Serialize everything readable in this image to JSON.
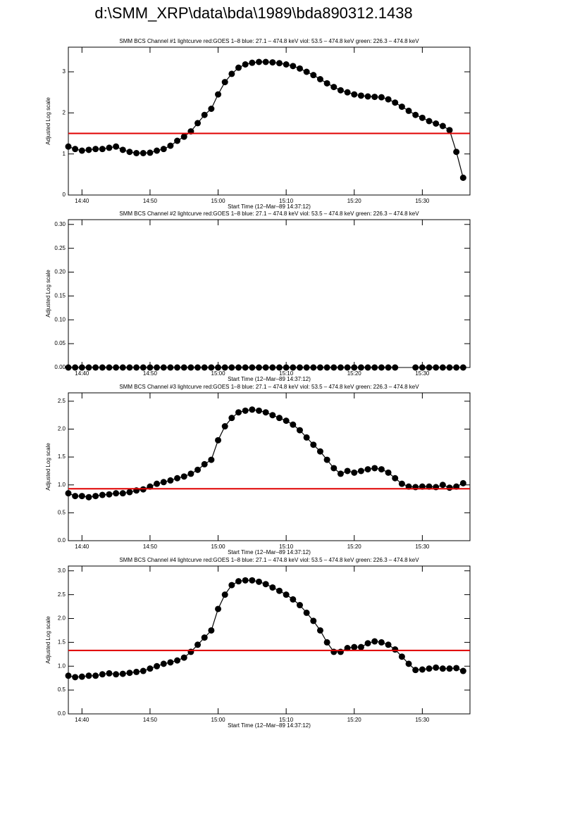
{
  "title": "d:\\SMM_XRP\\data\\bda\\1989\\bda890312.1438",
  "chart_data": [
    {
      "type": "line",
      "title": "SMM BCS Channel #1 lightcurve  red:GOES 1–8  blue: 27.1 – 474.8 keV  viol: 53.5 – 474.8 keV  green: 226.3 – 474.8 keV",
      "x_label": "Start Time (12–Mar–89 14:37:12)",
      "y_label": "Adjusted Log scale",
      "color": "#000000",
      "threshold": 1.5,
      "threshold_color": "#e00000",
      "xlim": [
        "14:38",
        "15:37"
      ],
      "xticks": [
        "14:40",
        "14:50",
        "15:00",
        "15:10",
        "15:20",
        "15:30"
      ],
      "ylim": [
        0,
        3.6
      ],
      "yticks": [
        0,
        1,
        2,
        3
      ],
      "x": [
        "14:38",
        "14:39",
        "14:40",
        "14:41",
        "14:42",
        "14:43",
        "14:44",
        "14:45",
        "14:46",
        "14:47",
        "14:48",
        "14:49",
        "14:50",
        "14:51",
        "14:52",
        "14:53",
        "14:54",
        "14:55",
        "14:56",
        "14:57",
        "14:58",
        "14:59",
        "15:00",
        "15:01",
        "15:02",
        "15:03",
        "15:04",
        "15:05",
        "15:06",
        "15:07",
        "15:08",
        "15:09",
        "15:10",
        "15:11",
        "15:12",
        "15:13",
        "15:14",
        "15:15",
        "15:16",
        "15:17",
        "15:18",
        "15:19",
        "15:20",
        "15:21",
        "15:22",
        "15:23",
        "15:24",
        "15:25",
        "15:26",
        "15:27",
        "15:28",
        "15:29",
        "15:30",
        "15:31",
        "15:32",
        "15:33",
        "15:34",
        "15:35",
        "15:36"
      ],
      "values": [
        1.18,
        1.12,
        1.08,
        1.1,
        1.12,
        1.12,
        1.15,
        1.18,
        1.1,
        1.05,
        1.02,
        1.02,
        1.03,
        1.08,
        1.12,
        1.2,
        1.32,
        1.42,
        1.55,
        1.75,
        1.95,
        2.1,
        2.45,
        2.75,
        2.95,
        3.1,
        3.18,
        3.22,
        3.24,
        3.24,
        3.23,
        3.21,
        3.18,
        3.14,
        3.08,
        3.0,
        2.92,
        2.82,
        2.72,
        2.63,
        2.55,
        2.5,
        2.45,
        2.42,
        2.4,
        2.39,
        2.38,
        2.33,
        2.25,
        2.15,
        2.05,
        1.95,
        1.88,
        1.8,
        1.74,
        1.68,
        1.58,
        1.05,
        0.42
      ]
    },
    {
      "type": "line",
      "title": "SMM BCS Channel #2 lightcurve  red:GOES 1–8  blue: 27.1 – 474.8 keV  viol: 53.5 – 474.8 keV  green: 226.3 – 474.8 keV",
      "x_label": "Start Time (12–Mar–89 14:37:12)",
      "y_label": "Adjusted Log scale",
      "color": "#000000",
      "xlim": [
        "14:38",
        "15:37"
      ],
      "xticks": [
        "14:40",
        "14:50",
        "15:00",
        "15:10",
        "15:20",
        "15:30"
      ],
      "ylim": [
        0,
        0.31
      ],
      "yticks": [
        {
          "value": 0,
          "label": "0.00"
        },
        {
          "value": 0.05,
          "label": "0.05"
        },
        {
          "value": 0.1,
          "label": "0.10"
        },
        {
          "value": 0.15,
          "label": "0.15"
        },
        {
          "value": 0.2,
          "label": "0.20"
        },
        {
          "value": 0.25,
          "label": "0.25"
        },
        {
          "value": 0.3,
          "label": "0.30"
        }
      ],
      "x": [
        "14:38",
        "14:39",
        "14:40",
        "14:41",
        "14:42",
        "14:43",
        "14:44",
        "14:45",
        "14:46",
        "14:47",
        "14:48",
        "14:49",
        "14:50",
        "14:51",
        "14:52",
        "14:53",
        "14:54",
        "14:55",
        "14:56",
        "14:57",
        "14:58",
        "14:59",
        "15:00",
        "15:01",
        "15:02",
        "15:03",
        "15:04",
        "15:05",
        "15:06",
        "15:07",
        "15:08",
        "15:09",
        "15:10",
        "15:11",
        "15:12",
        "15:13",
        "15:14",
        "15:15",
        "15:16",
        "15:17",
        "15:18",
        "15:19",
        "15:20",
        "15:21",
        "15:22",
        "15:23",
        "15:24",
        "15:25",
        "15:26",
        "15:27",
        "15:28",
        "15:29",
        "15:30",
        "15:31",
        "15:32",
        "15:33",
        "15:34",
        "15:35",
        "15:36"
      ],
      "values": [
        0,
        0,
        0,
        0,
        0,
        0,
        0,
        0,
        0,
        0,
        0,
        0,
        0,
        0,
        0,
        0,
        0,
        0,
        0,
        0,
        0,
        0,
        0,
        0,
        0,
        0,
        0,
        0,
        0,
        0,
        0,
        0,
        0,
        0,
        0,
        0,
        0,
        0,
        0,
        0,
        0,
        0,
        0,
        0,
        0,
        0,
        0,
        0,
        0,
        null,
        null,
        0,
        0,
        0,
        0,
        0,
        0,
        0,
        0
      ]
    },
    {
      "type": "line",
      "title": "SMM BCS Channel #3 lightcurve  red:GOES 1–8  blue: 27.1 – 474.8 keV  viol: 53.5 – 474.8 keV  green: 226.3 – 474.8 keV",
      "x_label": "Start Time (12–Mar–89 14:37:12)",
      "y_label": "Adjusted Log scale",
      "color": "#000000",
      "threshold": 0.93,
      "threshold_color": "#e00000",
      "xlim": [
        "14:38",
        "15:37"
      ],
      "xticks": [
        "14:40",
        "14:50",
        "15:00",
        "15:10",
        "15:20",
        "15:30"
      ],
      "ylim": [
        0,
        2.65
      ],
      "yticks": [
        {
          "value": 0,
          "label": "0.0"
        },
        {
          "value": 0.5,
          "label": "0.5"
        },
        {
          "value": 1,
          "label": "1.0"
        },
        {
          "value": 1.5,
          "label": "1.5"
        },
        {
          "value": 2,
          "label": "2.0"
        },
        {
          "value": 2.5,
          "label": "2.5"
        }
      ],
      "x": [
        "14:38",
        "14:39",
        "14:40",
        "14:41",
        "14:42",
        "14:43",
        "14:44",
        "14:45",
        "14:46",
        "14:47",
        "14:48",
        "14:49",
        "14:50",
        "14:51",
        "14:52",
        "14:53",
        "14:54",
        "14:55",
        "14:56",
        "14:57",
        "14:58",
        "14:59",
        "15:00",
        "15:01",
        "15:02",
        "15:03",
        "15:04",
        "15:05",
        "15:06",
        "15:07",
        "15:08",
        "15:09",
        "15:10",
        "15:11",
        "15:12",
        "15:13",
        "15:14",
        "15:15",
        "15:16",
        "15:17",
        "15:18",
        "15:19",
        "15:20",
        "15:21",
        "15:22",
        "15:23",
        "15:24",
        "15:25",
        "15:26",
        "15:27",
        "15:28",
        "15:29",
        "15:30",
        "15:31",
        "15:32",
        "15:33",
        "15:34",
        "15:35",
        "15:36"
      ],
      "values": [
        0.85,
        0.8,
        0.8,
        0.78,
        0.8,
        0.82,
        0.83,
        0.85,
        0.85,
        0.87,
        0.9,
        0.92,
        0.97,
        1.02,
        1.05,
        1.08,
        1.12,
        1.15,
        1.2,
        1.27,
        1.37,
        1.45,
        1.8,
        2.05,
        2.2,
        2.3,
        2.33,
        2.35,
        2.33,
        2.3,
        2.25,
        2.2,
        2.15,
        2.08,
        1.98,
        1.85,
        1.72,
        1.6,
        1.45,
        1.3,
        1.2,
        1.25,
        1.22,
        1.25,
        1.28,
        1.3,
        1.28,
        1.22,
        1.12,
        1.02,
        0.97,
        0.96,
        0.97,
        0.97,
        0.96,
        1.0,
        0.95,
        0.97,
        1.03
      ]
    },
    {
      "type": "line",
      "title": "SMM BCS Channel #4 lightcurve  red:GOES 1–8  blue: 27.1 – 474.8 keV  viol: 53.5 – 474.8 keV  green: 226.3 – 474.8 keV",
      "x_label": "Start Time (12–Mar–89 14:37:12)",
      "y_label": "Adjusted Log scale",
      "color": "#000000",
      "threshold": 1.33,
      "threshold_color": "#e00000",
      "xlim": [
        "14:38",
        "15:37"
      ],
      "xticks": [
        "14:40",
        "14:50",
        "15:00",
        "15:10",
        "15:20",
        "15:30"
      ],
      "ylim": [
        0,
        3.1
      ],
      "yticks": [
        {
          "value": 0,
          "label": "0.0"
        },
        {
          "value": 0.5,
          "label": "0.5"
        },
        {
          "value": 1,
          "label": "1.0"
        },
        {
          "value": 1.5,
          "label": "1.5"
        },
        {
          "value": 2,
          "label": "2.0"
        },
        {
          "value": 2.5,
          "label": "2.5"
        },
        {
          "value": 3,
          "label": "3.0"
        }
      ],
      "x": [
        "14:38",
        "14:39",
        "14:40",
        "14:41",
        "14:42",
        "14:43",
        "14:44",
        "14:45",
        "14:46",
        "14:47",
        "14:48",
        "14:49",
        "14:50",
        "14:51",
        "14:52",
        "14:53",
        "14:54",
        "14:55",
        "14:56",
        "14:57",
        "14:58",
        "14:59",
        "15:00",
        "15:01",
        "15:02",
        "15:03",
        "15:04",
        "15:05",
        "15:06",
        "15:07",
        "15:08",
        "15:09",
        "15:10",
        "15:11",
        "15:12",
        "15:13",
        "15:14",
        "15:15",
        "15:16",
        "15:17",
        "15:18",
        "15:19",
        "15:20",
        "15:21",
        "15:22",
        "15:23",
        "15:24",
        "15:25",
        "15:26",
        "15:27",
        "15:28",
        "15:29",
        "15:30",
        "15:31",
        "15:32",
        "15:33",
        "15:34",
        "15:35",
        "15:36"
      ],
      "values": [
        0.8,
        0.77,
        0.78,
        0.8,
        0.8,
        0.83,
        0.85,
        0.83,
        0.84,
        0.86,
        0.88,
        0.9,
        0.95,
        1.0,
        1.05,
        1.08,
        1.12,
        1.18,
        1.3,
        1.45,
        1.6,
        1.75,
        2.2,
        2.5,
        2.7,
        2.78,
        2.8,
        2.8,
        2.77,
        2.72,
        2.65,
        2.58,
        2.5,
        2.4,
        2.28,
        2.12,
        1.95,
        1.75,
        1.5,
        1.3,
        1.3,
        1.38,
        1.4,
        1.4,
        1.48,
        1.52,
        1.5,
        1.45,
        1.35,
        1.2,
        1.05,
        0.92,
        0.93,
        0.95,
        0.97,
        0.95,
        0.95,
        0.96,
        0.9
      ]
    }
  ]
}
